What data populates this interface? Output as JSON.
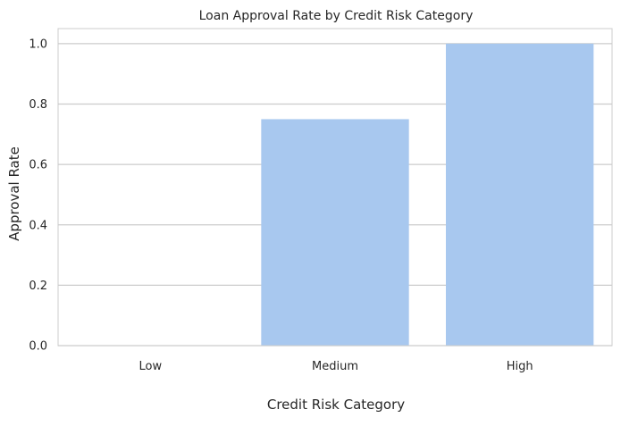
{
  "chart_data": {
    "type": "bar",
    "title": "Loan Approval Rate by Credit Risk Category",
    "xlabel": "Credit Risk Category",
    "ylabel": "Approval Rate",
    "categories": [
      "Low",
      "Medium",
      "High"
    ],
    "values": [
      0.0,
      0.75,
      1.0
    ],
    "ylim": [
      0,
      1.05
    ],
    "yticks": [
      "0.0",
      "0.2",
      "0.4",
      "0.6",
      "0.8",
      "1.0"
    ],
    "grid": "horizontal",
    "legend": "none",
    "colors": {
      "bar": "#a8c8ef",
      "grid": "#cccccc",
      "axis_spine": "#cccccc",
      "text": "#262626"
    }
  }
}
